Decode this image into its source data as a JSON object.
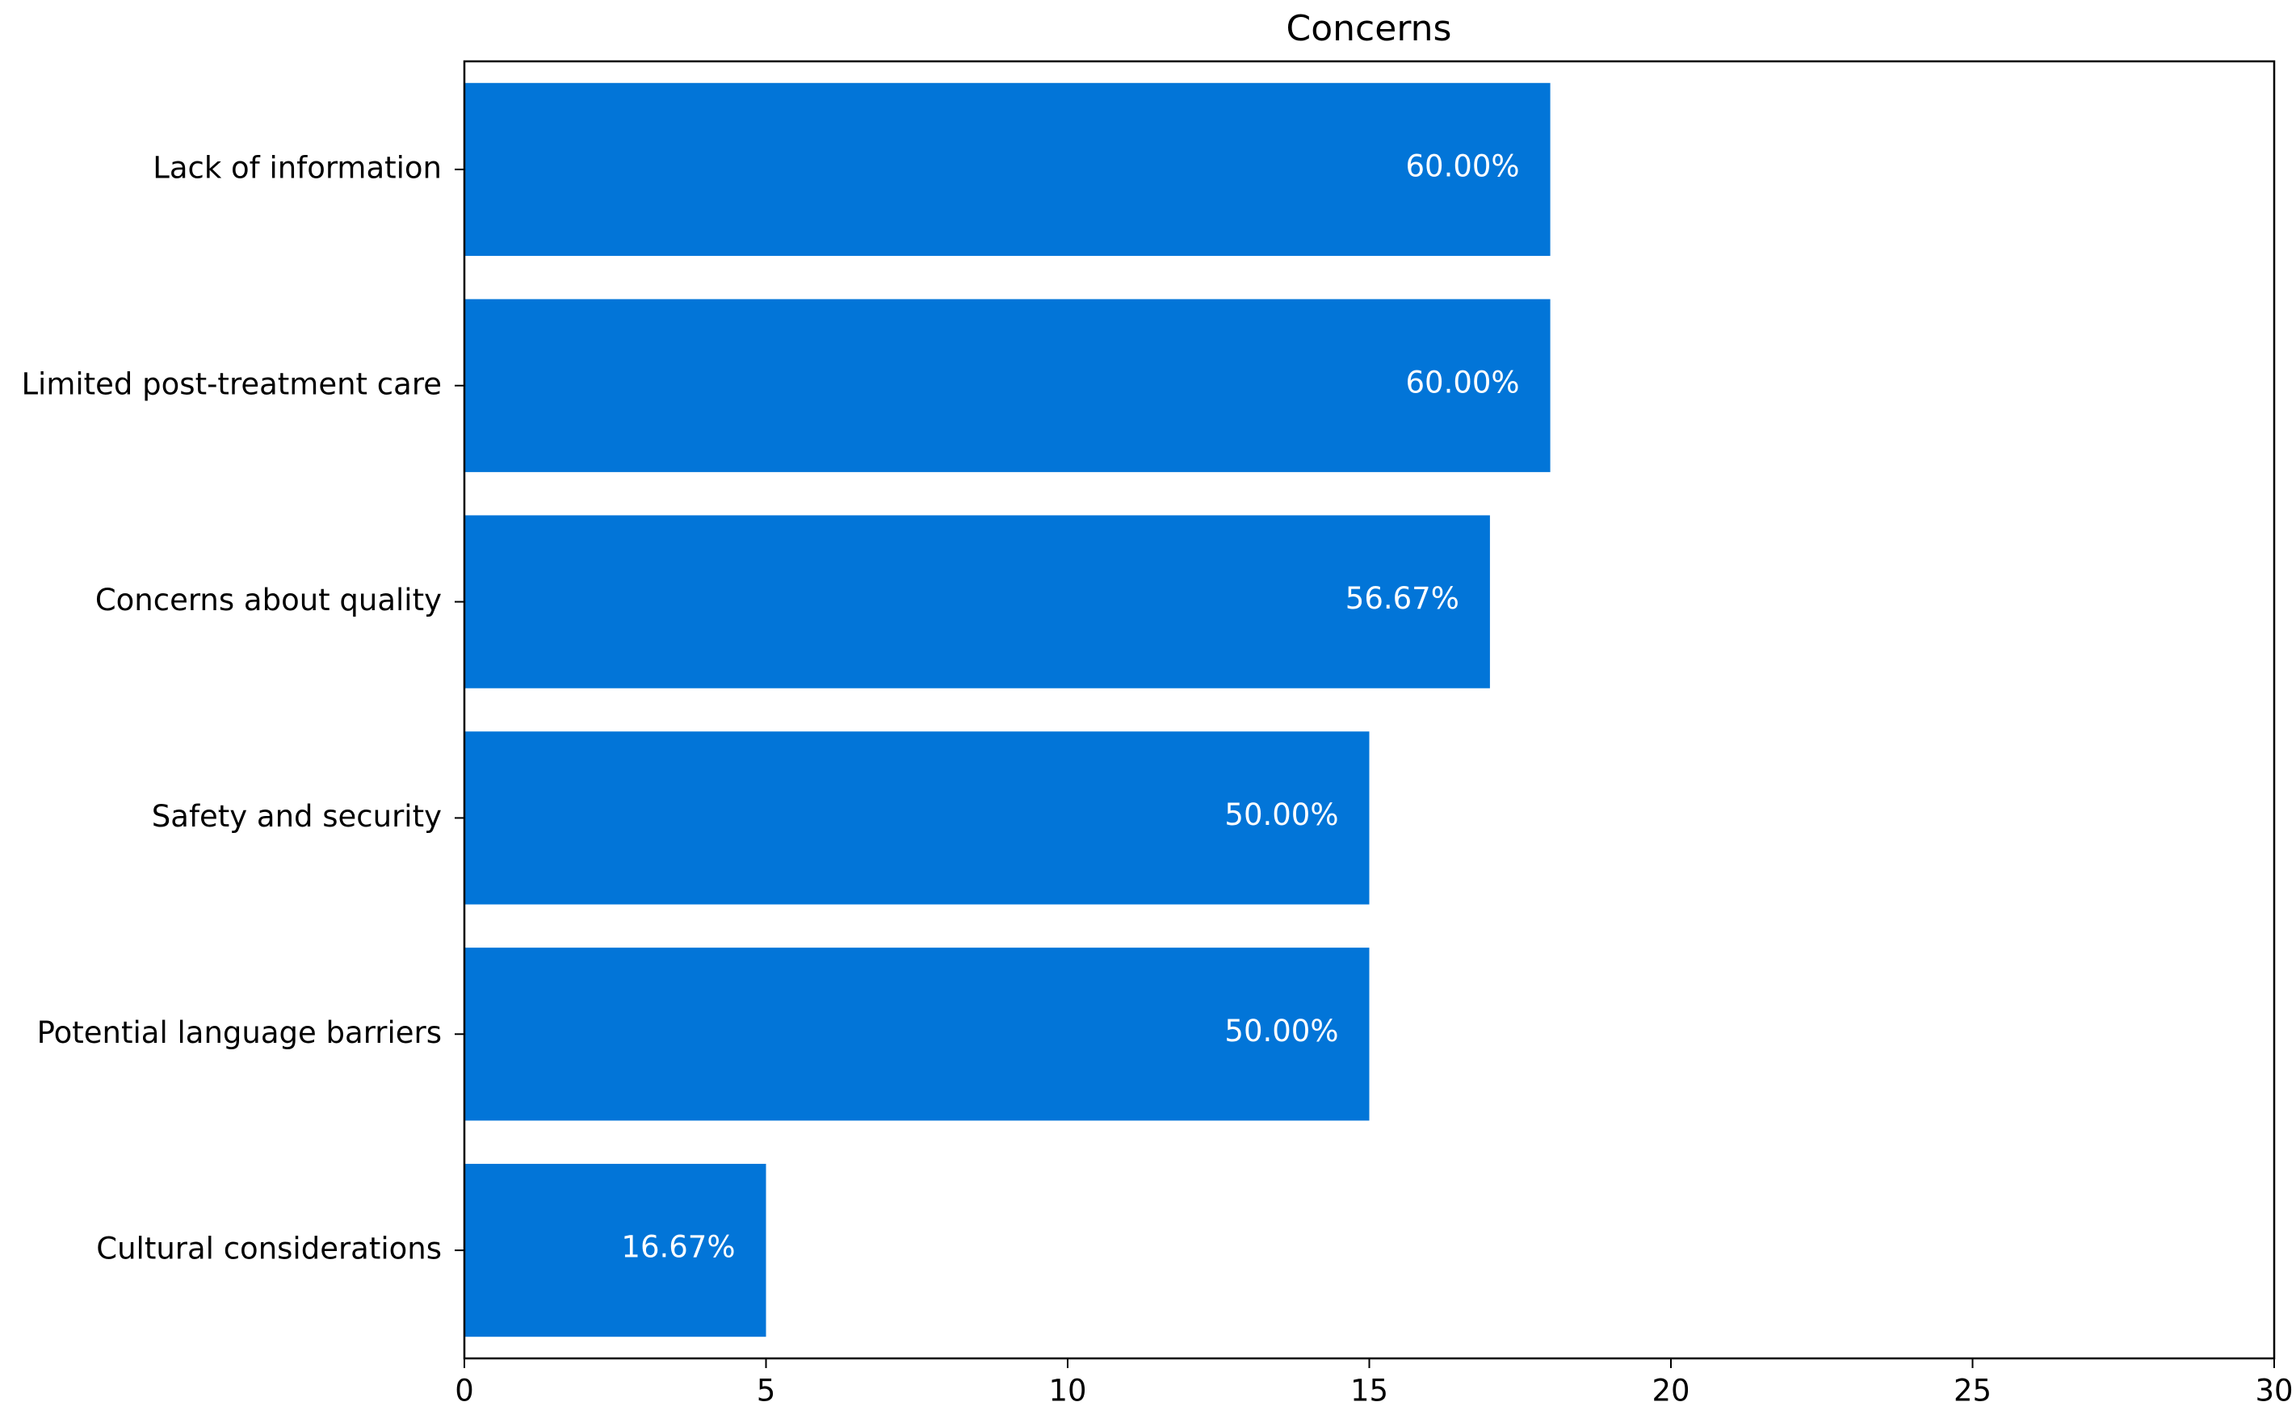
{
  "chart_data": {
    "type": "barh",
    "title": "Concerns",
    "categories": [
      "Lack of information",
      "Limited post-treatment care",
      "Concerns about quality",
      "Safety and security",
      "Potential language barriers",
      "Cultural considerations"
    ],
    "values": [
      18,
      18,
      17,
      15,
      15,
      5
    ],
    "value_labels": [
      "60.00%",
      "60.00%",
      "56.67%",
      "50.00%",
      "50.00%",
      "16.67%"
    ],
    "color": "#0275d8",
    "xlim": [
      0,
      30
    ],
    "xticks": [
      0,
      5,
      10,
      15,
      20,
      25,
      30
    ],
    "grid": false
  }
}
